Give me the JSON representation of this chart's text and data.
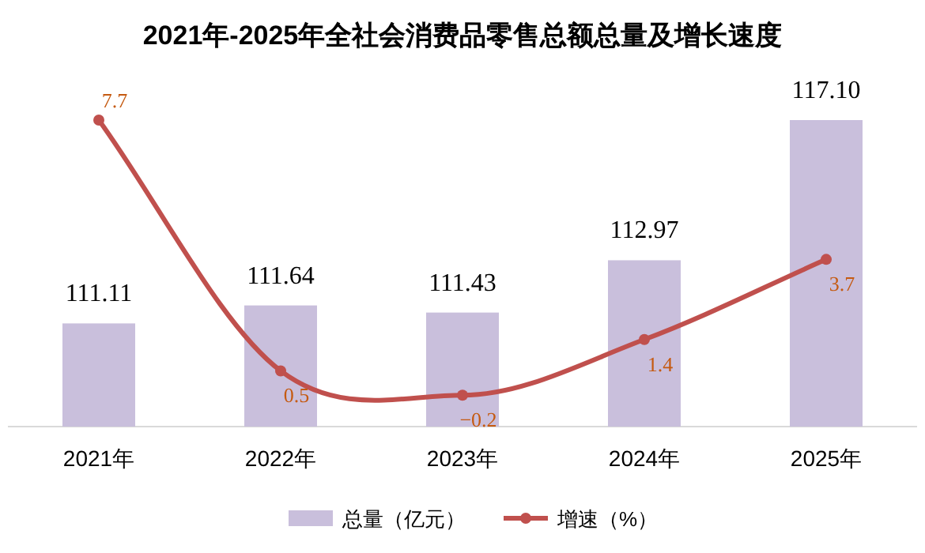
{
  "chart_data": {
    "type": "bar",
    "title": "2021年-2025年全社会消费品零售总额总量及增长速度",
    "categories": [
      "2021年",
      "2022年",
      "2023年",
      "2024年",
      "2025年"
    ],
    "ylim": [
      108.07,
      117.1
    ],
    "y2lim": [
      -1.1,
      7.7
    ],
    "data_labels": true,
    "legend": "bottom",
    "tick_labels": "x",
    "series": [
      {
        "name": "总量（亿元）",
        "color": "#c9bfdc",
        "values": [
          111.11,
          111.64,
          111.43,
          112.97,
          117.1
        ],
        "value_labels": [
          "111.11",
          "111.64",
          "111.43",
          "112.97",
          "117.10"
        ]
      },
      {
        "name": "增速（%）",
        "type": "line",
        "axis": "y2",
        "color": "#c0504d",
        "marker": "circle",
        "values": [
          7.7,
          0.5,
          -0.2,
          1.4,
          3.7
        ],
        "value_labels": [
          "7.7",
          "0.5",
          "−0.2",
          "1.4",
          "3.7"
        ]
      }
    ]
  }
}
